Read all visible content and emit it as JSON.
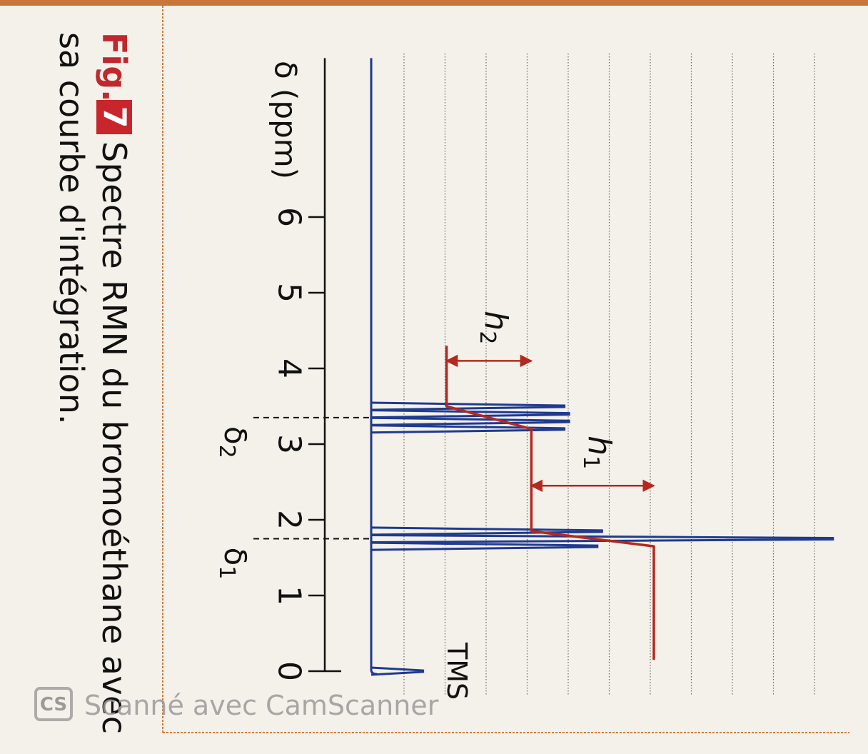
{
  "figure": {
    "label": "Fig.",
    "number": "7",
    "caption_line1": "Spectre RMN du bromoéthane avec",
    "caption_line2": "sa courbe d'intégration."
  },
  "watermark": {
    "logo": "CS",
    "text": "Scanné avec CamScanner"
  },
  "chart_data": {
    "type": "nmr",
    "xlabel": "δ (ppm)",
    "xlim": [
      0,
      8.1
    ],
    "xticks": [
      0,
      1,
      2,
      3,
      4,
      5,
      6
    ],
    "ylim": [
      0,
      100
    ],
    "series": [
      {
        "type": "peaks",
        "color": "#1f3a8f",
        "x": [
          0,
          1.65,
          1.75,
          1.85,
          3.2,
          3.3,
          3.4,
          3.5
        ],
        "values": [
          11,
          48,
          98,
          49,
          41,
          42,
          42,
          41
        ]
      },
      {
        "type": "integration",
        "color": "#b5281f",
        "x": [
          4.3,
          3.5,
          3.2,
          1.85,
          1.65,
          0.15
        ],
        "values": [
          16,
          16,
          34,
          34,
          60,
          60
        ]
      }
    ],
    "markers": [
      {
        "label": "δ",
        "sub": "2",
        "x": 3.35
      },
      {
        "label": "δ",
        "sub": "1",
        "x": 1.75
      }
    ],
    "heights": [
      {
        "label": "h",
        "sub": "2",
        "x": 4.1,
        "from": 16,
        "to": 34
      },
      {
        "label": "h",
        "sub": "1",
        "x": 2.45,
        "from": 34,
        "to": 60
      }
    ],
    "annotation": {
      "text": "TMS",
      "x": 0
    }
  }
}
